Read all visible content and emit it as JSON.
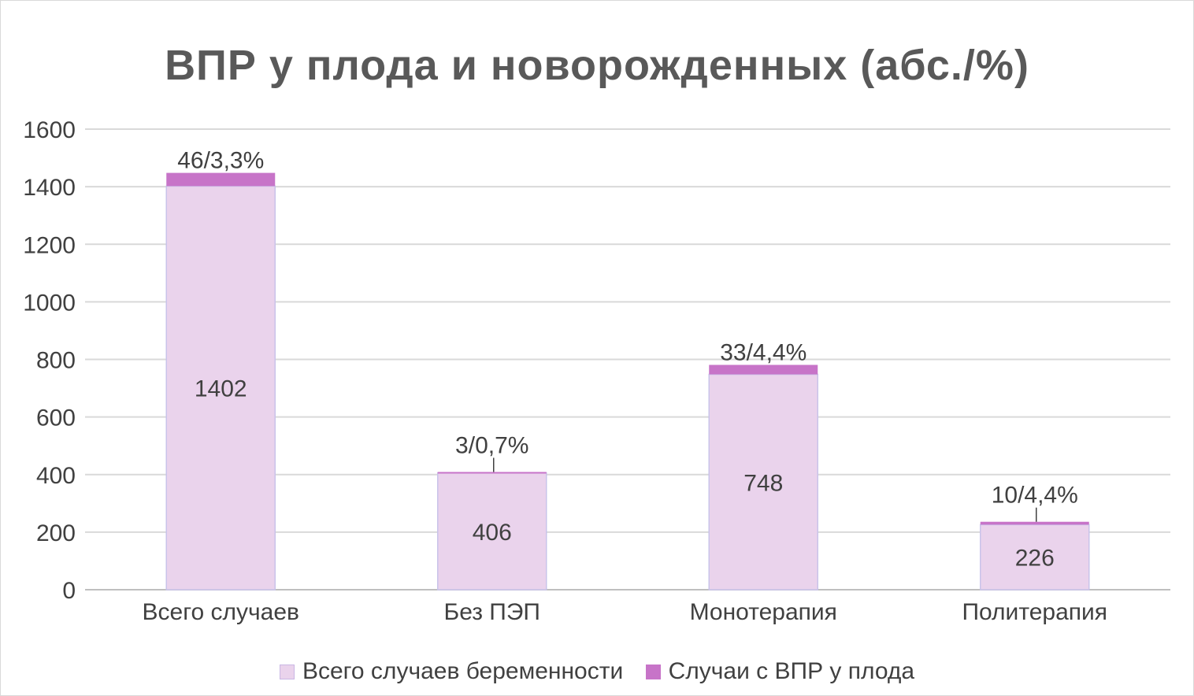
{
  "chart_data": {
    "type": "bar",
    "stacked": true,
    "title": "ВПР у плода и новорожденных (абс./%)",
    "categories": [
      "Всего случаев",
      "Без ПЭП",
      "Монотерапия",
      "Политерапия"
    ],
    "series": [
      {
        "name": "Всего случаев беременности",
        "values": [
          1402,
          406,
          748,
          226
        ],
        "labels": [
          "1402",
          "406",
          "748",
          "226"
        ],
        "color": "#ead3ec"
      },
      {
        "name": "Случаи с ВПР у плода",
        "values": [
          46,
          3,
          33,
          10
        ],
        "labels": [
          "46/3,3%",
          "3/0,7%",
          "33/4,4%",
          "10/4,4%"
        ],
        "color": "#c774c8"
      }
    ],
    "ylim": [
      0,
      1600
    ],
    "yticks": [
      0,
      200,
      400,
      600,
      800,
      1000,
      1200,
      1400,
      1600
    ],
    "grid": true,
    "legend_position": "bottom",
    "xlabel": "",
    "ylabel": ""
  }
}
